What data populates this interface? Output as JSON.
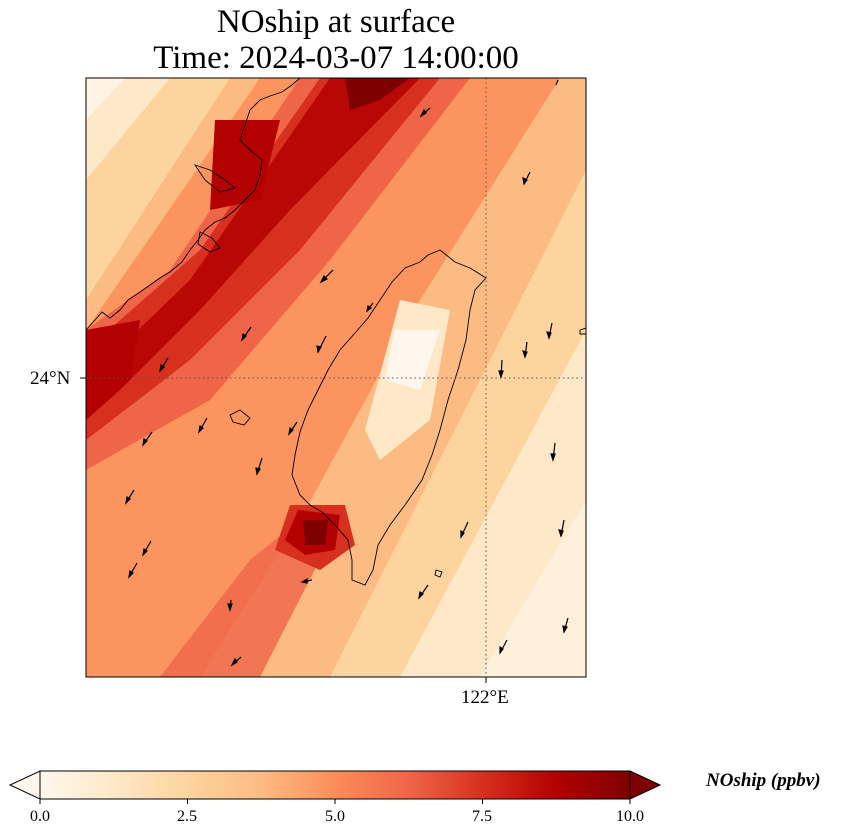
{
  "title": {
    "line1": "NOship at surface",
    "line2": "Time: 2024-03-07 14:00:00"
  },
  "axes": {
    "lat_tick": "24°N",
    "lon_tick": "122°E",
    "gridlines": "dotted"
  },
  "colorbar": {
    "label": "NOship (ppbv)",
    "ticks": [
      "0.0",
      "2.5",
      "5.0",
      "7.5",
      "10.0"
    ],
    "min": 0,
    "max": 10,
    "extend": "both",
    "colormap": "OrRd",
    "colors": [
      "#fff7ec",
      "#fee8c8",
      "#fdd49e",
      "#fdbb84",
      "#fc8d59",
      "#ef6548",
      "#d7301f",
      "#b30000",
      "#7f0000"
    ]
  }
}
